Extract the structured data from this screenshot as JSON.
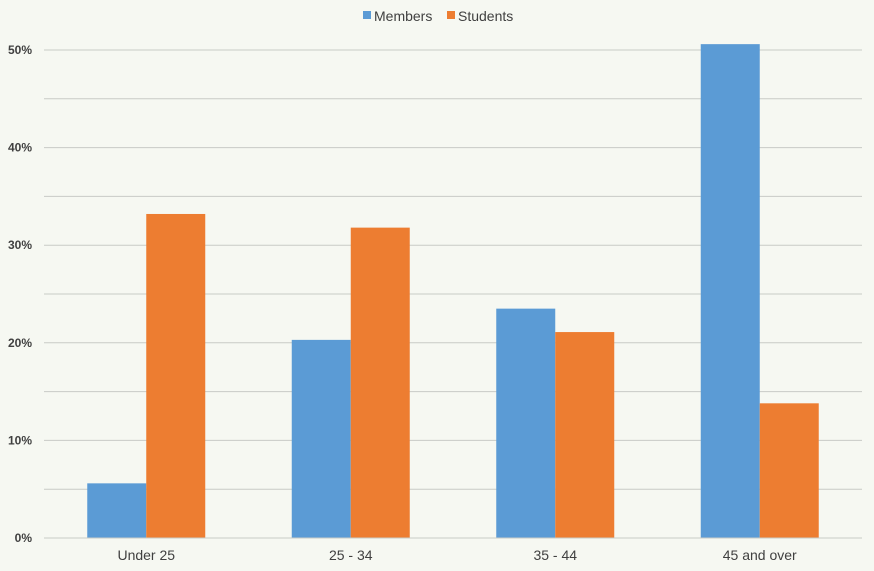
{
  "chart_data": {
    "type": "bar",
    "title": "",
    "xlabel": "",
    "ylabel": "",
    "categories": [
      "Under 25",
      "25 - 34",
      "35 - 44",
      "45 and over"
    ],
    "series": [
      {
        "name": "Members",
        "color": "#5b9bd5",
        "values": [
          5.6,
          20.3,
          23.5,
          50.6
        ]
      },
      {
        "name": "Students",
        "color": "#ed7d31",
        "values": [
          33.2,
          31.8,
          21.1,
          13.8
        ]
      }
    ],
    "ylim": [
      0,
      50
    ],
    "y_ticks": [
      "0%",
      "10%",
      "20%",
      "30%",
      "40%",
      "50%"
    ],
    "y_tick_values": [
      0,
      10,
      20,
      30,
      40,
      50
    ],
    "minor_gridlines": [
      5,
      15,
      25,
      35,
      45
    ],
    "grid": true,
    "legend_position": "top-center",
    "grid_color": "#c8cbc6"
  }
}
